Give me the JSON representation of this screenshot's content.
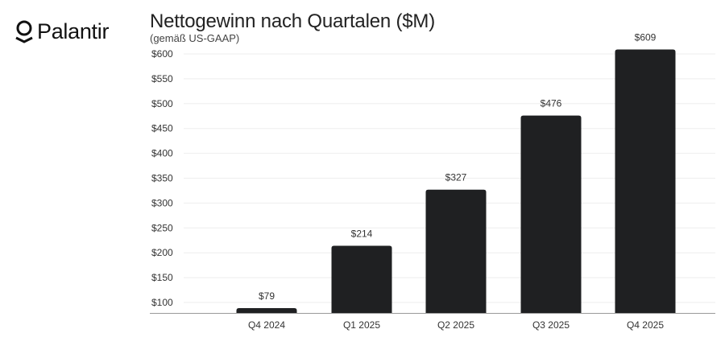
{
  "brand": {
    "name": "Palantir",
    "logo_icon": "palantir-logo-icon"
  },
  "chart_data": {
    "type": "bar",
    "title": "Nettogewinn nach Quartalen ($M)",
    "subtitle": "(gemäß US-GAAP)",
    "categories": [
      "Q4 2024",
      "Q1 2025",
      "Q2 2025",
      "Q3 2025",
      "Q4 2025"
    ],
    "values": [
      79,
      214,
      327,
      476,
      609
    ],
    "data_labels": [
      "$79",
      "$214",
      "$327",
      "$476",
      "$609"
    ],
    "yticks": [
      100,
      150,
      200,
      250,
      300,
      350,
      400,
      450,
      500,
      550,
      600
    ],
    "ytick_labels": [
      "$100",
      "$150",
      "$200",
      "$250",
      "$300",
      "$350",
      "$400",
      "$450",
      "$500",
      "$550",
      "$600"
    ],
    "ylim": [
      79,
      620
    ],
    "grid": true,
    "legend": "none",
    "bar_color": "#1f2022"
  }
}
